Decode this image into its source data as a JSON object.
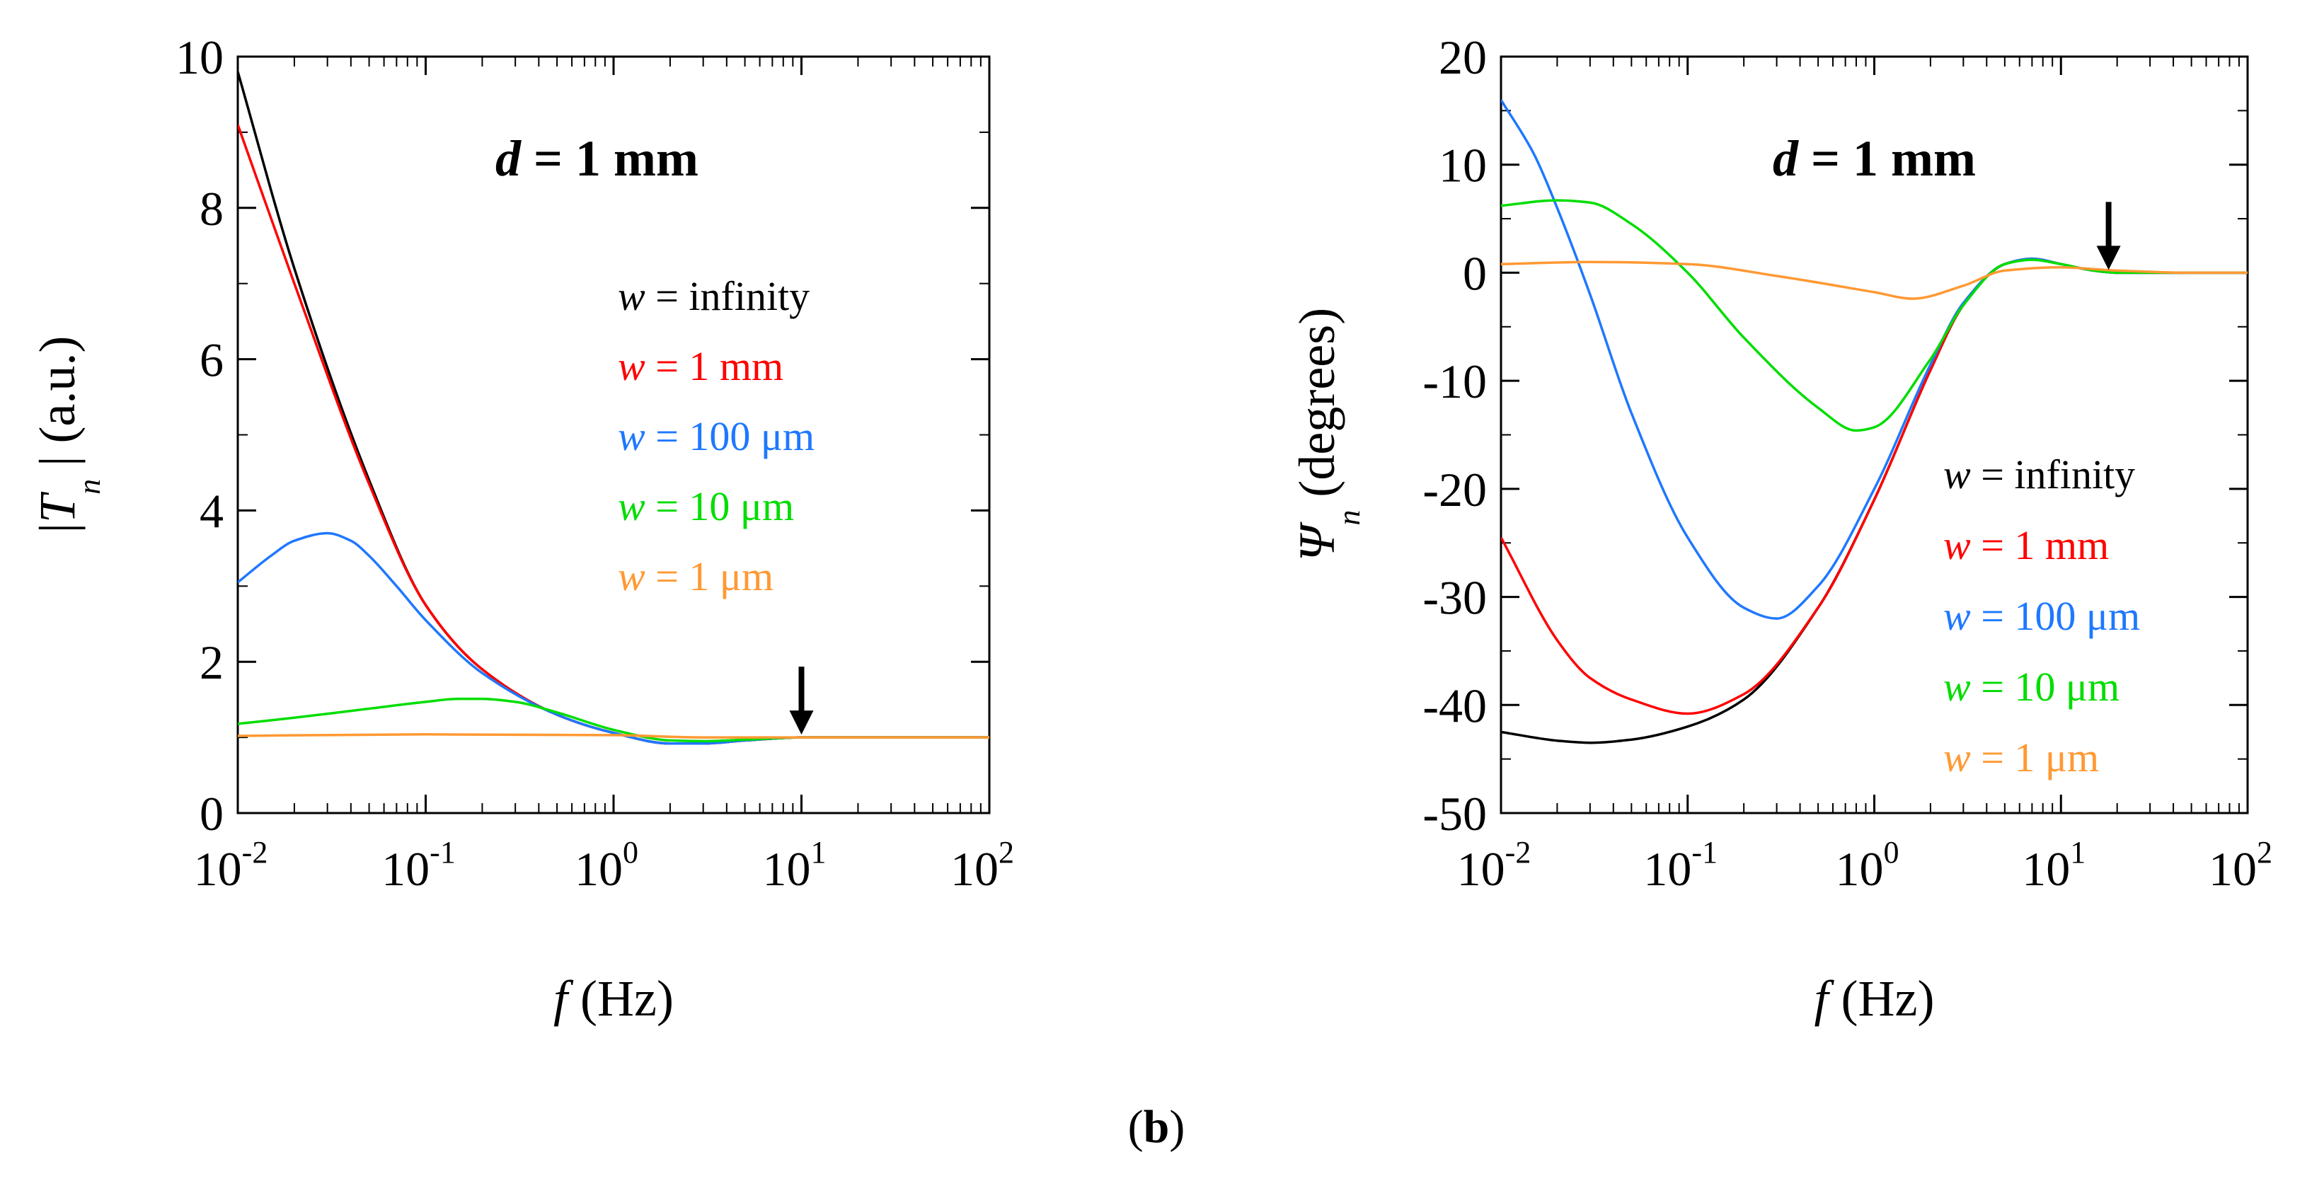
{
  "figure_label": {
    "open": "(",
    "letter": "b",
    "close": ")"
  },
  "chart_data": [
    {
      "type": "line",
      "xscale": "log",
      "xlim": [
        0.01,
        100
      ],
      "ylim": [
        0,
        10
      ],
      "x_ticks": [
        {
          "base": "10",
          "exp": "-2",
          "value": 0.01
        },
        {
          "base": "10",
          "exp": "-1",
          "value": 0.1
        },
        {
          "base": "10",
          "exp": "0",
          "value": 1
        },
        {
          "base": "10",
          "exp": "1",
          "value": 10
        },
        {
          "base": "10",
          "exp": "2",
          "value": 100
        }
      ],
      "y_ticks": [
        "0",
        "2",
        "4",
        "6",
        "8",
        "10"
      ],
      "y_tick_values": [
        0,
        2,
        4,
        6,
        8,
        10
      ],
      "xlabel": {
        "var": "f",
        "rest": " (Hz)"
      },
      "ylabel": {
        "pre": "|",
        "var": "T",
        "post": " | (a.u.)",
        "sub": "n"
      },
      "annotation": {
        "var": "d",
        "rest": " = 1 mm"
      },
      "arrow_at": {
        "x": 10,
        "y": 1.0
      },
      "legend": [
        {
          "var": "w",
          "rest": " = infinity",
          "color": "#000000"
        },
        {
          "var": "w",
          "rest": " = 1 mm",
          "color": "#ff0000"
        },
        {
          "var": "w",
          "rest": " = 100 μm",
          "color": "#1e78ff"
        },
        {
          "var": "w",
          "rest": " = 10 μm",
          "color": "#00dd00"
        },
        {
          "var": "w",
          "rest": " = 1 μm",
          "color": "#ff9933"
        }
      ],
      "series": [
        {
          "name": "w = infinity",
          "color": "#000000",
          "x": [
            0.01,
            0.02,
            0.05,
            0.1,
            0.2,
            0.5,
            1,
            2,
            3,
            5,
            10,
            100
          ],
          "y": [
            9.8,
            7.2,
            4.4,
            2.75,
            1.9,
            1.3,
            1.06,
            0.92,
            0.92,
            0.96,
            1.0,
            1.0
          ]
        },
        {
          "name": "w = 1 mm",
          "color": "#ff0000",
          "x": [
            0.01,
            0.02,
            0.05,
            0.1,
            0.2,
            0.5,
            1,
            2,
            3,
            5,
            10,
            100
          ],
          "y": [
            9.1,
            7.0,
            4.35,
            2.75,
            1.9,
            1.3,
            1.06,
            0.92,
            0.92,
            0.96,
            1.0,
            1.0
          ]
        },
        {
          "name": "w = 100 μm",
          "color": "#1e78ff",
          "x": [
            0.01,
            0.015,
            0.02,
            0.03,
            0.04,
            0.05,
            0.07,
            0.1,
            0.2,
            0.5,
            1,
            2,
            3,
            5,
            10,
            100
          ],
          "y": [
            3.05,
            3.4,
            3.6,
            3.7,
            3.6,
            3.4,
            3.0,
            2.55,
            1.85,
            1.3,
            1.06,
            0.92,
            0.92,
            0.96,
            1.0,
            1.0
          ]
        },
        {
          "name": "w = 10 μm",
          "color": "#00dd00",
          "x": [
            0.01,
            0.02,
            0.05,
            0.1,
            0.15,
            0.2,
            0.3,
            0.5,
            1,
            2,
            3,
            5,
            10,
            100
          ],
          "y": [
            1.18,
            1.26,
            1.38,
            1.47,
            1.51,
            1.51,
            1.47,
            1.33,
            1.1,
            0.96,
            0.95,
            0.97,
            1.0,
            1.0
          ]
        },
        {
          "name": "w = 1 μm",
          "color": "#ff9933",
          "x": [
            0.01,
            0.1,
            1,
            3,
            10,
            100
          ],
          "y": [
            1.02,
            1.04,
            1.03,
            1.0,
            1.0,
            1.0
          ]
        }
      ]
    },
    {
      "type": "line",
      "xscale": "log",
      "xlim": [
        0.01,
        100
      ],
      "ylim": [
        -50,
        20
      ],
      "x_ticks": [
        {
          "base": "10",
          "exp": "-2",
          "value": 0.01
        },
        {
          "base": "10",
          "exp": "-1",
          "value": 0.1
        },
        {
          "base": "10",
          "exp": "0",
          "value": 1
        },
        {
          "base": "10",
          "exp": "1",
          "value": 10
        },
        {
          "base": "10",
          "exp": "2",
          "value": 100
        }
      ],
      "y_ticks": [
        "-50",
        "-40",
        "-30",
        "-20",
        "-10",
        "0",
        "10",
        "20"
      ],
      "y_tick_values": [
        -50,
        -40,
        -30,
        -20,
        -10,
        0,
        10,
        20
      ],
      "xlabel": {
        "var": "f",
        "rest": " (Hz)"
      },
      "ylabel": {
        "pre": "",
        "var": "Ψ",
        "post": " (degrees)",
        "sub": "n"
      },
      "annotation": {
        "var": "d",
        "rest": " = 1 mm"
      },
      "arrow_at": {
        "x": 18,
        "y": 0
      },
      "legend": [
        {
          "var": "w",
          "rest": " = infinity",
          "color": "#000000"
        },
        {
          "var": "w",
          "rest": " = 1 mm",
          "color": "#ff0000"
        },
        {
          "var": "w",
          "rest": " = 100 μm",
          "color": "#1e78ff"
        },
        {
          "var": "w",
          "rest": " = 10 μm",
          "color": "#00dd00"
        },
        {
          "var": "w",
          "rest": " = 1 μm",
          "color": "#ff9933"
        }
      ],
      "series": [
        {
          "name": "w = infinity",
          "color": "#000000",
          "x": [
            0.01,
            0.02,
            0.03,
            0.05,
            0.1,
            0.2,
            0.5,
            1,
            2,
            3,
            5,
            7,
            10,
            15,
            20,
            50,
            100
          ],
          "y": [
            -42.5,
            -43.3,
            -43.5,
            -43.2,
            -42,
            -39.5,
            -31,
            -21,
            -9,
            -3,
            0.8,
            1.3,
            0.8,
            0.2,
            0,
            0,
            0
          ]
        },
        {
          "name": "w = 1 mm",
          "color": "#ff0000",
          "x": [
            0.01,
            0.02,
            0.03,
            0.05,
            0.1,
            0.2,
            0.5,
            1,
            2,
            3,
            5,
            7,
            10,
            15,
            20,
            50,
            100
          ],
          "y": [
            -24.5,
            -34,
            -37.5,
            -39.5,
            -40.8,
            -39,
            -31,
            -21,
            -9,
            -3,
            0.8,
            1.3,
            0.8,
            0.2,
            0,
            0,
            0
          ]
        },
        {
          "name": "w = 100 μm",
          "color": "#1e78ff",
          "x": [
            0.01,
            0.015,
            0.02,
            0.03,
            0.05,
            0.1,
            0.2,
            0.3,
            0.5,
            1,
            2,
            3,
            5,
            7,
            10,
            15,
            20,
            50,
            100
          ],
          "y": [
            16,
            11,
            6,
            -2,
            -13,
            -24.5,
            -31,
            -32,
            -29,
            -20,
            -8.5,
            -2.8,
            0.8,
            1.3,
            0.8,
            0.2,
            0,
            0,
            0
          ]
        },
        {
          "name": "w = 10 μm",
          "color": "#00dd00",
          "x": [
            0.01,
            0.02,
            0.03,
            0.05,
            0.1,
            0.2,
            0.5,
            0.8,
            1,
            2,
            3,
            5,
            7,
            10,
            15,
            20,
            50,
            100
          ],
          "y": [
            6.2,
            6.7,
            6.5,
            4.5,
            0,
            -6,
            -12.5,
            -14.6,
            -14.3,
            -8,
            -3,
            0.8,
            1.2,
            0.8,
            0.2,
            0,
            0,
            0
          ]
        },
        {
          "name": "w = 1 μm",
          "color": "#ff9933",
          "x": [
            0.01,
            0.03,
            0.1,
            0.3,
            1,
            1.6,
            3,
            5,
            10,
            20,
            50,
            100
          ],
          "y": [
            0.8,
            1.0,
            0.8,
            -0.3,
            -1.8,
            -2.4,
            -1.2,
            0.2,
            0.5,
            0.2,
            0,
            0
          ]
        }
      ]
    }
  ]
}
